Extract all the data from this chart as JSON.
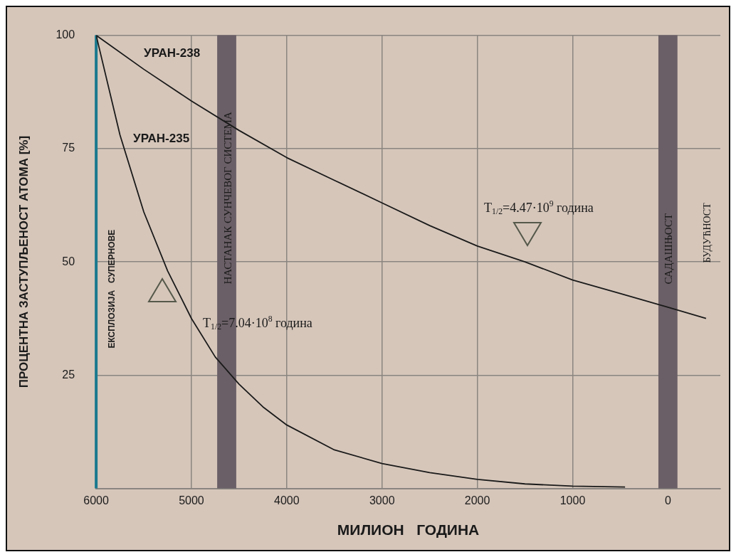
{
  "chart_data": {
    "type": "line",
    "xlabel": "МИЛИОН   ГОДИНА",
    "ylabel": "ПРОЦЕНТНА ЗАСТУПЉЕНОСТ АТОМА [%]",
    "xlim": [
      6000,
      -550
    ],
    "xticks": [
      6000,
      5000,
      4000,
      3000,
      2000,
      1000,
      0
    ],
    "ylim": [
      0,
      100
    ],
    "yticks": [
      {
        "value": 0,
        "label": null
      },
      25,
      50,
      75,
      100
    ],
    "grid": true,
    "legend": false,
    "marker": "none",
    "line_style": "solid",
    "series": [
      {
        "name": "УРАН-238",
        "color": "#1a1a1a",
        "x": [
          6000,
          5500,
          5000,
          4500,
          4000,
          3500,
          3000,
          2500,
          2000,
          1500,
          1000,
          500,
          0,
          -400
        ],
        "values": [
          100,
          92.5,
          85.5,
          79,
          73,
          68,
          63,
          58,
          53.5,
          50,
          46,
          43,
          40,
          37.5
        ]
      },
      {
        "name": "УРАН-235",
        "color": "#1a1a1a",
        "x": [
          6000,
          5750,
          5500,
          5250,
          5000,
          4750,
          4500,
          4250,
          4000,
          3500,
          3000,
          2500,
          2000,
          1500,
          1000,
          450
        ],
        "values": [
          100,
          78,
          61,
          48,
          37.5,
          29,
          23,
          18,
          14,
          8.5,
          5.5,
          3.5,
          2,
          1,
          0.5,
          0.3
        ]
      }
    ],
    "ref_lines": [
      {
        "axis": "x",
        "value": 6000,
        "label": "ЕКСПЛОЗИЈА   СУПЕРНОВЕ",
        "color": "#1b7a8e"
      }
    ],
    "bands": [
      {
        "axis": "x",
        "from": 4730,
        "to": 4530,
        "label": "НАСТАНАК СУНЧЕВОГ СИСТЕМА",
        "color": "#6a5f66"
      },
      {
        "axis": "x",
        "from": 100,
        "to": -100,
        "label": "САДАШЊОСТ",
        "color": "#6a5f66"
      }
    ],
    "annotations": [
      "T$_{1/2}$=7.04·10$^{8}$ година",
      "T$_{1/2}$=4.47·10$^{9}$ година",
      "БУДУЋНОСТ"
    ]
  }
}
